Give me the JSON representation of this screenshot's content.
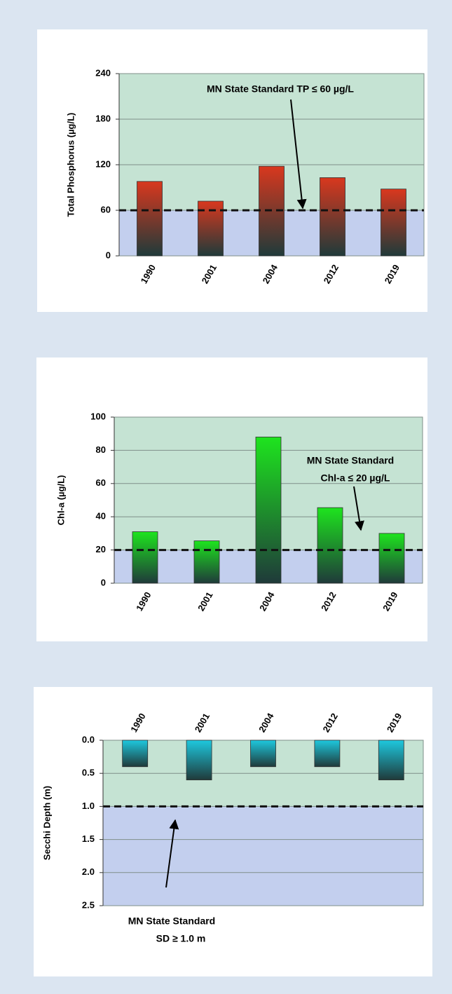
{
  "chart_data": [
    {
      "type": "bar",
      "ylabel": "Total Phosphorus  (µg/L)",
      "categories": [
        "1990",
        "2001",
        "2004",
        "2012",
        "2019"
      ],
      "values": [
        98,
        72,
        118,
        103,
        88
      ],
      "color": "#d9381e",
      "ylim": [
        0,
        240
      ],
      "yticks": [
        0,
        60,
        120,
        180,
        240
      ],
      "grid": true,
      "standard": 60,
      "annotation": [
        "MN State Standard TP  ≤ 60 µg/L"
      ]
    },
    {
      "type": "bar",
      "ylabel": "Chl-a (µg/L)",
      "categories": [
        "1990",
        "2001",
        "2004",
        "2012",
        "2019"
      ],
      "values": [
        31,
        25.5,
        88,
        45.5,
        30
      ],
      "color": "#1ee41e",
      "ylim": [
        0,
        100
      ],
      "yticks": [
        0,
        20,
        40,
        60,
        80,
        100
      ],
      "grid": true,
      "standard": 20,
      "annotation": [
        "MN State Standard",
        "Chl-a ≤ 20 µg/L"
      ]
    },
    {
      "type": "bar",
      "ylabel": "Secchi Depth (m)",
      "categories": [
        "1990",
        "2001",
        "2004",
        "2012",
        "2019"
      ],
      "values": [
        0.4,
        0.6,
        0.4,
        0.4,
        0.6
      ],
      "color": "#1ec8de",
      "ylim": [
        0,
        2.5
      ],
      "yticks": [
        {
          "value": 0,
          "label": "0.0"
        },
        0.5,
        {
          "value": 1,
          "label": "1.0"
        },
        1.5,
        {
          "value": 2,
          "label": "2.0"
        },
        2.5
      ],
      "inverted": true,
      "grid": true,
      "standard": 1.0,
      "annotation": [
        "MN State Standard",
        "SD ≥ 1.0 m"
      ]
    }
  ]
}
